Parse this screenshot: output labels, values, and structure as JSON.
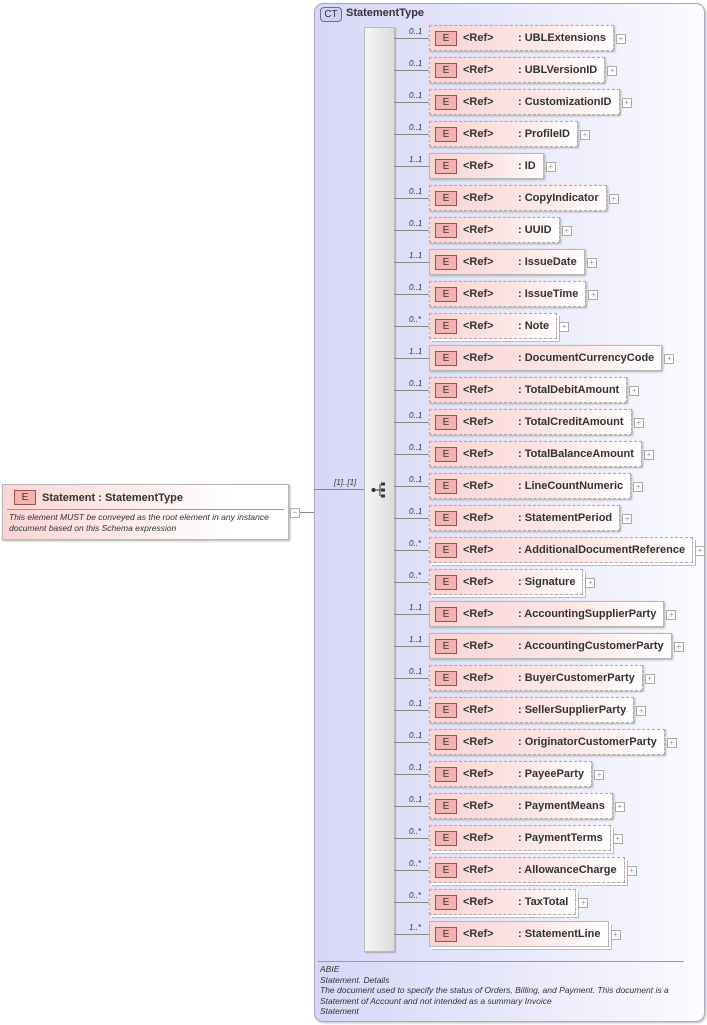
{
  "root": {
    "badge": "E",
    "title": "Statement : StatementType",
    "documentation": "This element MUST be conveyed as the root element in any instance document based on this Schema expression",
    "collapse_icon": "minus-box-icon"
  },
  "complex_type": {
    "badge": "CT",
    "name": "StatementType",
    "sequence_occurrence": "[1]..[1]",
    "sequence_icon": "sequence-compositor-icon",
    "annotation": [
      "ABIE",
      "Statement. Details",
      "The document used to specify the status of Orders, Billing, and Payment. This document is a Statement of Account and not intended as a summary Invoice",
      "Statement"
    ]
  },
  "element_badge": "E",
  "ref_label": "<Ref>",
  "children": [
    {
      "occ": "0..1",
      "name": ": UBLExtensions"
    },
    {
      "occ": "0..1",
      "name": ": UBLVersionID"
    },
    {
      "occ": "0..1",
      "name": ": CustomizationID"
    },
    {
      "occ": "0..1",
      "name": ": ProfileID"
    },
    {
      "occ": "1..1",
      "name": ": ID"
    },
    {
      "occ": "0..1",
      "name": ": CopyIndicator"
    },
    {
      "occ": "0..1",
      "name": ": UUID"
    },
    {
      "occ": "1..1",
      "name": ": IssueDate"
    },
    {
      "occ": "0..1",
      "name": ": IssueTime"
    },
    {
      "occ": "0..*",
      "name": ": Note"
    },
    {
      "occ": "1..1",
      "name": ": DocumentCurrencyCode"
    },
    {
      "occ": "0..1",
      "name": ": TotalDebitAmount"
    },
    {
      "occ": "0..1",
      "name": ": TotalCreditAmount"
    },
    {
      "occ": "0..1",
      "name": ": TotalBalanceAmount"
    },
    {
      "occ": "0..1",
      "name": ": LineCountNumeric"
    },
    {
      "occ": "0..1",
      "name": ": StatementPeriod"
    },
    {
      "occ": "0..*",
      "name": ": AdditionalDocumentReference"
    },
    {
      "occ": "0..*",
      "name": ": Signature"
    },
    {
      "occ": "1..1",
      "name": ": AccountingSupplierParty"
    },
    {
      "occ": "1..1",
      "name": ": AccountingCustomerParty"
    },
    {
      "occ": "0..1",
      "name": ": BuyerCustomerParty"
    },
    {
      "occ": "0..1",
      "name": ": SellerSupplierParty"
    },
    {
      "occ": "0..1",
      "name": ": OriginatorCustomerParty"
    },
    {
      "occ": "0..1",
      "name": ": PayeeParty"
    },
    {
      "occ": "0..1",
      "name": ": PaymentMeans"
    },
    {
      "occ": "0..*",
      "name": ": PaymentTerms"
    },
    {
      "occ": "0..*",
      "name": ": AllowanceCharge"
    },
    {
      "occ": "0..*",
      "name": ": TaxTotal"
    },
    {
      "occ": "1..*",
      "name": ": StatementLine"
    }
  ]
}
